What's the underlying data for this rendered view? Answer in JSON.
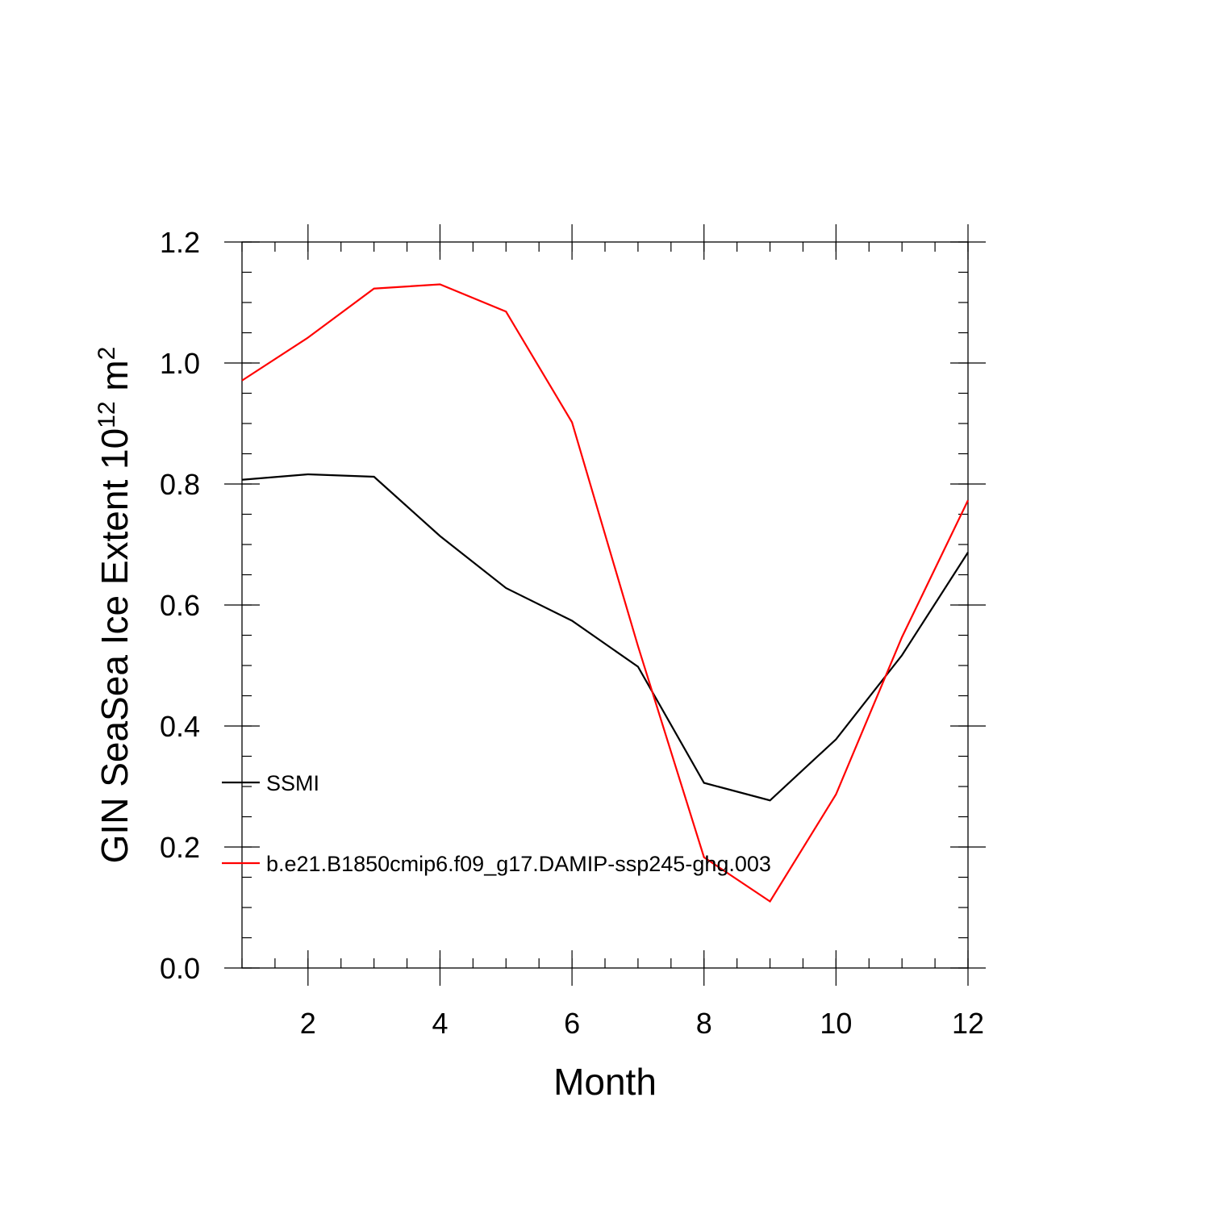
{
  "chart_data": {
    "type": "line",
    "title": "",
    "xlabel": "Month",
    "ylabel": {
      "prefix": "GIN SeaSea Ice Extent 10",
      "superscript_exponent": "12",
      "unit": " m",
      "unit_superscript": "2"
    },
    "xlim": [
      1,
      12
    ],
    "ylim": [
      0.0,
      1.2
    ],
    "x_ticks": [
      2,
      4,
      6,
      8,
      10,
      12
    ],
    "x_tick_labels": [
      "2",
      "4",
      "6",
      "8",
      "10",
      "12"
    ],
    "y_ticks": [
      0.0,
      0.2,
      0.4,
      0.6,
      0.8,
      1.0,
      1.2
    ],
    "y_tick_labels": [
      "0.0",
      "0.2",
      "0.4",
      "0.6",
      "0.8",
      "1.0",
      "1.2"
    ],
    "grid": false,
    "legend_position": "lower-left inside",
    "x": [
      1,
      2,
      3,
      4,
      5,
      6,
      7,
      8,
      9,
      10,
      11,
      12
    ],
    "series": [
      {
        "name": "SSMI",
        "color": "#000000",
        "values": [
          0.807,
          0.816,
          0.812,
          0.714,
          0.628,
          0.574,
          0.498,
          0.306,
          0.277,
          0.378,
          0.517,
          0.687
        ]
      },
      {
        "name": "b.e21.B1850cmip6.f09_g17.DAMIP-ssp245-ghg.003",
        "color": "#ff0000",
        "values": [
          0.971,
          1.042,
          1.123,
          1.13,
          1.085,
          0.902,
          0.532,
          0.183,
          0.11,
          0.287,
          0.547,
          0.773
        ]
      }
    ]
  }
}
